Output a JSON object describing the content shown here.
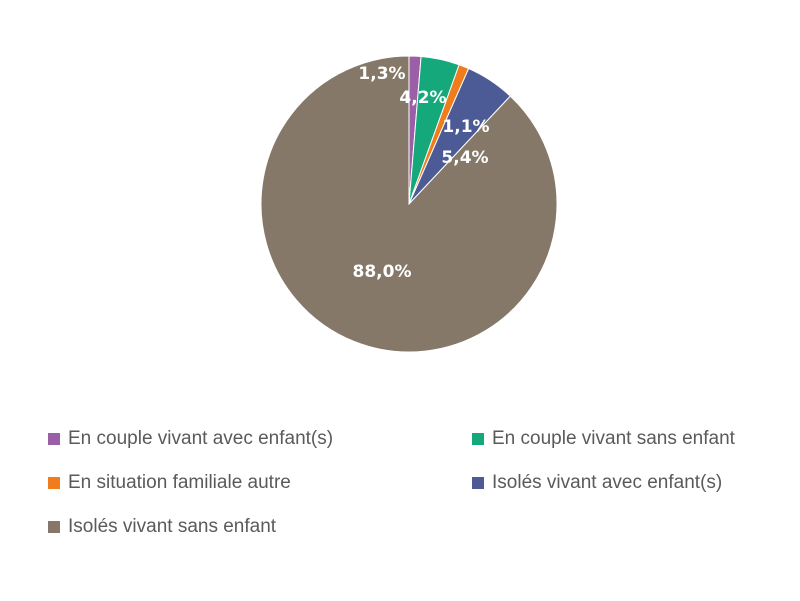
{
  "chart_data": {
    "type": "pie",
    "categories": [
      "En couple vivant avec enfant(s)",
      "En couple vivant sans enfant",
      "En situation familiale autre",
      "Isolés vivant avec enfant(s)",
      "Isolés vivant sans enfant"
    ],
    "values": [
      1.3,
      4.2,
      1.1,
      5.4,
      88.0
    ],
    "labels": [
      "1,3%",
      "4,2%",
      "1,1%",
      "5,4%",
      "88,0%"
    ],
    "colors": [
      "#9b5fa8",
      "#14a87a",
      "#f07c1e",
      "#4c5a95",
      "#857868"
    ],
    "legend_position": "bottom"
  }
}
